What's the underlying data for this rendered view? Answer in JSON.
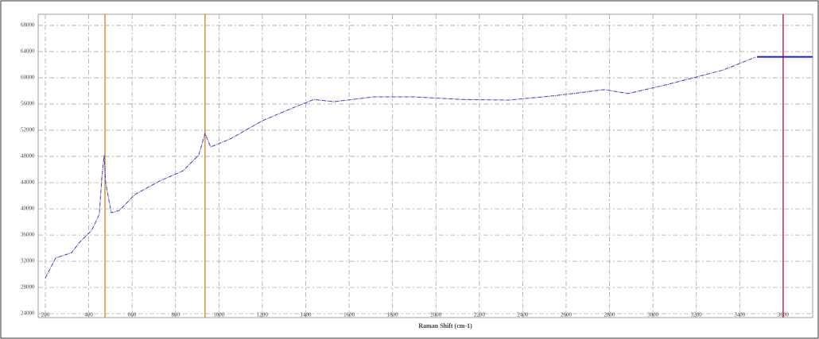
{
  "chart_data": {
    "type": "line",
    "x_label": "Raman Shift (cm-1)",
    "xlim": [
      167,
      3736
    ],
    "ylim": [
      23400,
      69700
    ],
    "xticks": [
      200,
      400,
      600,
      800,
      1000,
      1200,
      1400,
      1600,
      1800,
      2000,
      2200,
      2400,
      2600,
      2800,
      3000,
      3200,
      3400,
      3600
    ],
    "yticks": [
      24000,
      28000,
      32000,
      36000,
      40000,
      44000,
      48000,
      52000,
      56000,
      60000,
      64000,
      68000
    ],
    "grid": true,
    "series": [
      {
        "color": "#3a3ad0",
        "x": [
          200,
          248,
          321,
          358,
          413,
          449,
          460,
          471,
          478,
          504,
          541,
          614,
          724,
          834,
          907,
          936,
          962,
          1054,
          1200,
          1347,
          1438,
          1530,
          1713,
          1896,
          2116,
          2336,
          2556,
          2776,
          2886,
          3069,
          3325,
          3472
        ],
        "values": [
          29450,
          32500,
          33300,
          34900,
          36700,
          39150,
          44600,
          48200,
          44000,
          39400,
          39750,
          42200,
          44200,
          45800,
          48200,
          51500,
          49450,
          50700,
          53450,
          55500,
          56700,
          56350,
          57100,
          57100,
          56700,
          56600,
          57300,
          58200,
          57600,
          59000,
          61200,
          63150
        ]
      },
      {
        "color": "#2020c0",
        "x": [
          3480,
          3736
        ],
        "values": [
          63200,
          63200
        ]
      }
    ],
    "vlines": [
      {
        "x": 475,
        "color": "#e0902a"
      },
      {
        "x": 936,
        "color": "#e0902a"
      },
      {
        "x": 3600,
        "color": "#b03050"
      }
    ]
  }
}
